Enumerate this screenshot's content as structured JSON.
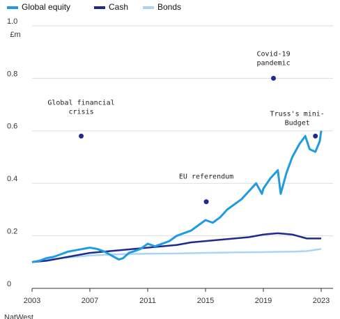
{
  "chart_data": {
    "type": "line",
    "y_unit": "£m",
    "source": "NatWest",
    "xlim": [
      2003,
      2023
    ],
    "xticks": [
      2003,
      2007,
      2011,
      2015,
      2019,
      2023
    ],
    "ylim": [
      0,
      1
    ],
    "yticks": [
      0,
      0.2,
      0.4,
      0.6,
      0.8,
      {
        "value": 1,
        "label": "1.0"
      }
    ],
    "grid": true,
    "series": [
      {
        "name": "Global equity",
        "color": "#1e9be2",
        "x": [
          2003,
          2003.5,
          2004,
          2004.5,
          2005,
          2005.5,
          2006,
          2006.5,
          2007,
          2007.5,
          2008,
          2008.5,
          2009,
          2009.3,
          2009.7,
          2010,
          2010.5,
          2011,
          2011.5,
          2012,
          2012.5,
          2013,
          2013.5,
          2014,
          2014.5,
          2015,
          2015.5,
          2016,
          2016.5,
          2017,
          2017.5,
          2018,
          2018.5,
          2018.9,
          2019,
          2019.5,
          2020,
          2020.2,
          2020.6,
          2021,
          2021.5,
          2021.9,
          2022.2,
          2022.6,
          2022.9,
          2023
        ],
        "values": [
          0.1,
          0.105,
          0.115,
          0.12,
          0.13,
          0.14,
          0.145,
          0.15,
          0.155,
          0.15,
          0.14,
          0.125,
          0.11,
          0.115,
          0.135,
          0.14,
          0.15,
          0.17,
          0.16,
          0.17,
          0.18,
          0.2,
          0.21,
          0.22,
          0.24,
          0.26,
          0.25,
          0.27,
          0.3,
          0.32,
          0.34,
          0.37,
          0.4,
          0.36,
          0.38,
          0.42,
          0.45,
          0.36,
          0.44,
          0.5,
          0.55,
          0.58,
          0.53,
          0.52,
          0.56,
          0.6
        ]
      },
      {
        "name": "Cash",
        "color": "#1f2a8f",
        "x": [
          2003,
          2004,
          2005,
          2006,
          2007,
          2008,
          2009,
          2010,
          2011,
          2012,
          2013,
          2014,
          2015,
          2016,
          2017,
          2018,
          2019,
          2020,
          2021,
          2022,
          2023
        ],
        "values": [
          0.1,
          0.105,
          0.115,
          0.125,
          0.135,
          0.14,
          0.145,
          0.15,
          0.155,
          0.16,
          0.165,
          0.175,
          0.18,
          0.185,
          0.19,
          0.195,
          0.205,
          0.21,
          0.205,
          0.19,
          0.19
        ]
      },
      {
        "name": "Bonds",
        "color": "#a8d4f5",
        "x": [
          2003,
          2005,
          2007,
          2009,
          2011,
          2013,
          2015,
          2017,
          2019,
          2021,
          2022,
          2023
        ],
        "values": [
          0.1,
          0.115,
          0.125,
          0.13,
          0.132,
          0.133,
          0.135,
          0.137,
          0.138,
          0.14,
          0.142,
          0.15
        ]
      }
    ],
    "annotations": [
      {
        "lines": [
          "Global financial",
          "crisis"
        ],
        "x": 2006.4,
        "y": 0.58
      },
      {
        "lines": [
          "EU referendum"
        ],
        "x": 2015.05,
        "y": 0.33
      },
      {
        "lines": [
          "Covid-19",
          "pandemic"
        ],
        "x": 2019.7,
        "y": 0.8
      },
      {
        "lines": [
          "Truss's mini-",
          "Budget"
        ],
        "x": 2022.6,
        "y": 0.58
      }
    ],
    "annotation_color": "#1f2a8f"
  }
}
